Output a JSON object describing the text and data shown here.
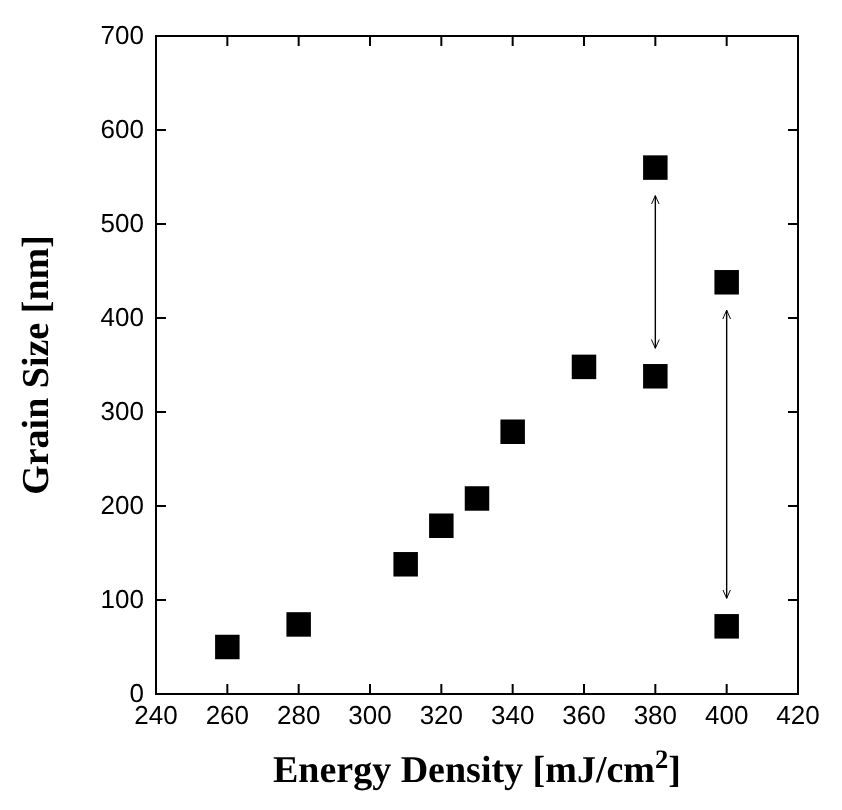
{
  "chart_data": {
    "type": "scatter",
    "xlabel": "Energy Density [mJ/cm$^{2}$]",
    "ylabel": "Grain Size [nm]",
    "x": [
      260,
      280,
      310,
      320,
      330,
      340,
      360,
      380,
      380,
      400,
      400
    ],
    "series": [
      {
        "color": "#000000",
        "values": [
          50,
          74,
          138,
          179,
          208,
          279,
          348,
          338,
          560,
          438,
          72
        ]
      }
    ],
    "marker": "square",
    "grid": false,
    "xlim": [
      240,
      420
    ],
    "xticks": [
      240,
      260,
      280,
      300,
      320,
      340,
      360,
      380,
      400,
      420
    ],
    "ylim": [
      0,
      700
    ],
    "yticks": [
      0,
      100,
      200,
      300,
      400,
      500,
      600,
      700
    ]
  }
}
